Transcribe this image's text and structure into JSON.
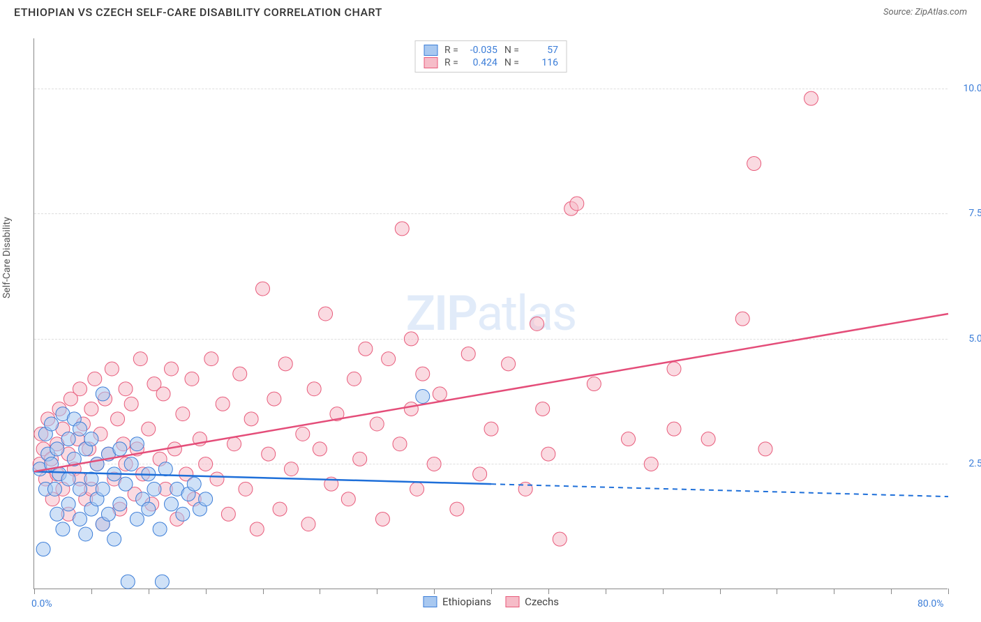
{
  "header": {
    "title": "ETHIOPIAN VS CZECH SELF-CARE DISABILITY CORRELATION CHART",
    "source_label": "Source:",
    "source_name": "ZipAtlas.com"
  },
  "watermark": {
    "bold": "ZIP",
    "rest": "atlas"
  },
  "chart": {
    "type": "scatter",
    "ylabel": "Self-Care Disability",
    "xlim": [
      0,
      80
    ],
    "ylim": [
      0,
      11
    ],
    "background_color": "#ffffff",
    "grid_color": "#dddddd",
    "axis_color": "#888888",
    "tick_label_color": "#3b7dd8",
    "marker_radius": 10,
    "marker_opacity": 0.55,
    "ytick_labels": [
      {
        "y": 2.5,
        "label": "2.5%"
      },
      {
        "y": 5.0,
        "label": "5.0%"
      },
      {
        "y": 7.5,
        "label": "7.5%"
      },
      {
        "y": 10.0,
        "label": "10.0%"
      }
    ],
    "xticks": [
      0,
      5,
      10,
      15,
      20,
      25,
      30,
      35,
      40,
      45,
      50,
      55,
      60,
      65,
      70,
      75,
      80
    ],
    "xtick_label_left": {
      "x": 0,
      "label": "0.0%"
    },
    "xtick_label_right": {
      "x": 80,
      "label": "80.0%"
    },
    "series": [
      {
        "name": "Ethiopians",
        "fill_color": "#a8c8f0",
        "stroke_color": "#3b7dd8",
        "trend_color": "#1e6fd9",
        "R": "-0.035",
        "N": "57",
        "trend": {
          "x1": 0,
          "y1": 2.35,
          "x2_solid": 40,
          "y2_solid": 2.1,
          "x2": 80,
          "y2": 1.85
        },
        "points": [
          [
            0.5,
            2.4
          ],
          [
            0.8,
            0.8
          ],
          [
            1,
            3.1
          ],
          [
            1,
            2.0
          ],
          [
            1.2,
            2.7
          ],
          [
            1.5,
            2.5
          ],
          [
            1.5,
            3.3
          ],
          [
            1.8,
            2.0
          ],
          [
            2,
            2.8
          ],
          [
            2,
            1.5
          ],
          [
            2.2,
            2.3
          ],
          [
            2.5,
            3.5
          ],
          [
            2.5,
            1.2
          ],
          [
            3,
            3.0
          ],
          [
            3,
            2.2
          ],
          [
            3,
            1.7
          ],
          [
            3.5,
            2.6
          ],
          [
            3.5,
            3.4
          ],
          [
            4,
            2.0
          ],
          [
            4,
            3.2
          ],
          [
            4,
            1.4
          ],
          [
            4.5,
            2.8
          ],
          [
            4.5,
            1.1
          ],
          [
            5,
            3.0
          ],
          [
            5,
            2.2
          ],
          [
            5,
            1.6
          ],
          [
            5.5,
            2.5
          ],
          [
            5.5,
            1.8
          ],
          [
            6,
            3.9
          ],
          [
            6,
            2.0
          ],
          [
            6,
            1.3
          ],
          [
            6.5,
            2.7
          ],
          [
            6.5,
            1.5
          ],
          [
            7,
            2.3
          ],
          [
            7,
            1.0
          ],
          [
            7.5,
            2.8
          ],
          [
            7.5,
            1.7
          ],
          [
            8,
            2.1
          ],
          [
            8.2,
            0.15
          ],
          [
            8.5,
            2.5
          ],
          [
            9,
            1.4
          ],
          [
            9,
            2.9
          ],
          [
            9.5,
            1.8
          ],
          [
            10,
            2.3
          ],
          [
            10,
            1.6
          ],
          [
            10.5,
            2.0
          ],
          [
            11,
            1.2
          ],
          [
            11.2,
            0.15
          ],
          [
            11.5,
            2.4
          ],
          [
            12,
            1.7
          ],
          [
            12.5,
            2.0
          ],
          [
            13,
            1.5
          ],
          [
            13.5,
            1.9
          ],
          [
            14,
            2.1
          ],
          [
            14.5,
            1.6
          ],
          [
            15,
            1.8
          ],
          [
            34,
            3.85
          ]
        ]
      },
      {
        "name": "Czechs",
        "fill_color": "#f6bcc8",
        "stroke_color": "#e85a7a",
        "trend_color": "#e44d79",
        "R": "0.424",
        "N": "116",
        "trend": {
          "x1": 0,
          "y1": 2.35,
          "x2_solid": 80,
          "y2_solid": 5.5,
          "x2": 80,
          "y2": 5.5
        },
        "points": [
          [
            0.5,
            2.5
          ],
          [
            0.6,
            3.1
          ],
          [
            0.8,
            2.8
          ],
          [
            1,
            2.2
          ],
          [
            1.2,
            3.4
          ],
          [
            1.5,
            2.6
          ],
          [
            1.6,
            1.8
          ],
          [
            2,
            2.9
          ],
          [
            2,
            2.3
          ],
          [
            2.2,
            3.6
          ],
          [
            2.5,
            2.0
          ],
          [
            2.5,
            3.2
          ],
          [
            3,
            2.7
          ],
          [
            3,
            1.5
          ],
          [
            3.2,
            3.8
          ],
          [
            3.5,
            2.4
          ],
          [
            3.8,
            3.0
          ],
          [
            4,
            4.0
          ],
          [
            4,
            2.2
          ],
          [
            4.3,
            3.3
          ],
          [
            4.5,
            1.8
          ],
          [
            4.8,
            2.8
          ],
          [
            5,
            3.6
          ],
          [
            5,
            2.0
          ],
          [
            5.3,
            4.2
          ],
          [
            5.5,
            2.5
          ],
          [
            5.8,
            3.1
          ],
          [
            6,
            1.3
          ],
          [
            6.2,
            3.8
          ],
          [
            6.5,
            2.7
          ],
          [
            6.8,
            4.4
          ],
          [
            7,
            2.2
          ],
          [
            7.3,
            3.4
          ],
          [
            7.5,
            1.6
          ],
          [
            7.8,
            2.9
          ],
          [
            8,
            4.0
          ],
          [
            8,
            2.5
          ],
          [
            8.5,
            3.7
          ],
          [
            8.8,
            1.9
          ],
          [
            9,
            2.8
          ],
          [
            9.3,
            4.6
          ],
          [
            9.5,
            2.3
          ],
          [
            10,
            3.2
          ],
          [
            10.3,
            1.7
          ],
          [
            10.5,
            4.1
          ],
          [
            11,
            2.6
          ],
          [
            11.3,
            3.9
          ],
          [
            11.5,
            2.0
          ],
          [
            12,
            4.4
          ],
          [
            12.3,
            2.8
          ],
          [
            12.5,
            1.4
          ],
          [
            13,
            3.5
          ],
          [
            13.3,
            2.3
          ],
          [
            13.8,
            4.2
          ],
          [
            14,
            1.8
          ],
          [
            14.5,
            3.0
          ],
          [
            15,
            2.5
          ],
          [
            15.5,
            4.6
          ],
          [
            16,
            2.2
          ],
          [
            16.5,
            3.7
          ],
          [
            17,
            1.5
          ],
          [
            17.5,
            2.9
          ],
          [
            18,
            4.3
          ],
          [
            18.5,
            2.0
          ],
          [
            19,
            3.4
          ],
          [
            19.5,
            1.2
          ],
          [
            20,
            6.0
          ],
          [
            20.5,
            2.7
          ],
          [
            21,
            3.8
          ],
          [
            21.5,
            1.6
          ],
          [
            22,
            4.5
          ],
          [
            22.5,
            2.4
          ],
          [
            23.5,
            3.1
          ],
          [
            24,
            1.3
          ],
          [
            24.5,
            4.0
          ],
          [
            25,
            2.8
          ],
          [
            25.5,
            5.5
          ],
          [
            26,
            2.1
          ],
          [
            26.5,
            3.5
          ],
          [
            27.5,
            1.8
          ],
          [
            28,
            4.2
          ],
          [
            28.5,
            2.6
          ],
          [
            29,
            4.8
          ],
          [
            30,
            3.3
          ],
          [
            30.5,
            1.4
          ],
          [
            31,
            4.6
          ],
          [
            32,
            2.9
          ],
          [
            32.2,
            7.2
          ],
          [
            33,
            5.0
          ],
          [
            33,
            3.6
          ],
          [
            33.5,
            2.0
          ],
          [
            34,
            4.3
          ],
          [
            35,
            2.5
          ],
          [
            35.5,
            3.9
          ],
          [
            37,
            1.6
          ],
          [
            38,
            4.7
          ],
          [
            39,
            2.3
          ],
          [
            40,
            3.2
          ],
          [
            41.5,
            4.5
          ],
          [
            43,
            2.0
          ],
          [
            44,
            5.3
          ],
          [
            44.5,
            3.6
          ],
          [
            45,
            2.7
          ],
          [
            46,
            1.0
          ],
          [
            47,
            7.6
          ],
          [
            47.5,
            7.7
          ],
          [
            49,
            4.1
          ],
          [
            52,
            3.0
          ],
          [
            54,
            2.5
          ],
          [
            56,
            4.4
          ],
          [
            56,
            3.2
          ],
          [
            59,
            3.0
          ],
          [
            62,
            5.4
          ],
          [
            63,
            8.5
          ],
          [
            64,
            2.8
          ],
          [
            68,
            9.8
          ]
        ]
      }
    ]
  }
}
